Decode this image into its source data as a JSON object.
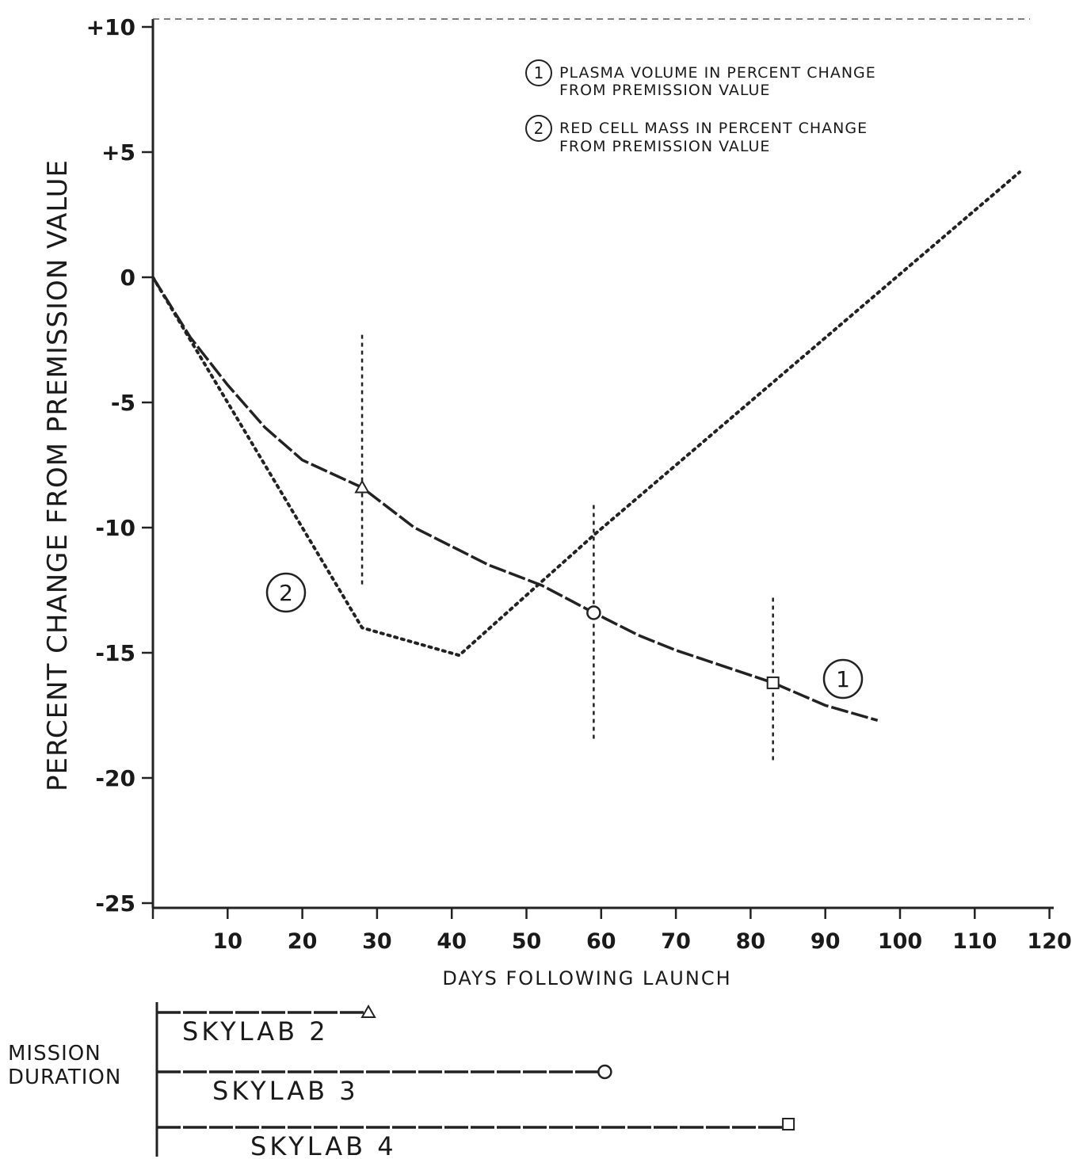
{
  "chart_data": {
    "type": "line",
    "title": "",
    "xlabel": "DAYS FOLLOWING LAUNCH",
    "ylabel": "PERCENT CHANGE FROM PREMISSION VALUE",
    "xlim": [
      0,
      120
    ],
    "ylim": [
      -25,
      10
    ],
    "x_ticks": [
      10,
      20,
      30,
      40,
      50,
      60,
      70,
      80,
      90,
      100,
      110,
      120
    ],
    "x_tick_labels": [
      "10",
      "20",
      "30",
      "40",
      "50",
      "60",
      "70",
      "80",
      "90",
      "100",
      "110",
      "120"
    ],
    "y_ticks": [
      10,
      5,
      0,
      -5,
      -10,
      -15,
      -20,
      -25
    ],
    "y_tick_labels": [
      "+10",
      "+5",
      "0",
      "-5",
      "-10",
      "-15",
      "-20",
      "-25"
    ],
    "grid": false,
    "legend_position": "top-right",
    "legend": [
      {
        "marker": "1",
        "line1": "PLASMA VOLUME IN PERCENT CHANGE",
        "line2": "FROM PREMISSION VALUE"
      },
      {
        "marker": "2",
        "line1": "RED CELL MASS IN PERCENT CHANGE",
        "line2": "FROM PREMISSION VALUE"
      }
    ],
    "series": [
      {
        "name": "PLASMA VOLUME IN PERCENT CHANGE FROM PREMISSION VALUE",
        "label": "1",
        "style": "dashed-solid",
        "x": [
          0,
          5,
          10,
          15,
          20,
          28,
          35,
          45,
          52,
          59,
          65,
          70,
          75,
          83,
          90,
          97
        ],
        "y": [
          0,
          -2.4,
          -4.3,
          -6.0,
          -7.3,
          -8.4,
          -10.0,
          -11.5,
          -12.3,
          -13.4,
          -14.3,
          -14.9,
          -15.4,
          -16.2,
          -17.1,
          -17.7
        ]
      },
      {
        "name": "RED CELL MASS IN PERCENT CHANGE FROM PREMISSION VALUE",
        "label": "2",
        "style": "dotted",
        "x": [
          0,
          28,
          41,
          59,
          116
        ],
        "y": [
          0,
          -14.0,
          -15.1,
          -10.3,
          4.2
        ]
      }
    ],
    "error_bars": [
      {
        "x": 28,
        "y_low": -12.4,
        "y_high": -2.3,
        "marker": "triangle"
      },
      {
        "x": 59,
        "y_low": -18.5,
        "y_high": -9.1,
        "marker": "circle"
      },
      {
        "x": 83,
        "y_low": -19.4,
        "y_high": -12.8,
        "marker": "square"
      }
    ],
    "missions": {
      "title_line1": "MISSION",
      "title_line2": "DURATION",
      "bars": [
        {
          "label": "SKYLAB 2",
          "days": 28,
          "marker": "triangle"
        },
        {
          "label": "SKYLAB 3",
          "days": 59,
          "marker": "circle"
        },
        {
          "label": "SKYLAB 4",
          "days": 84,
          "marker": "square"
        }
      ]
    }
  }
}
